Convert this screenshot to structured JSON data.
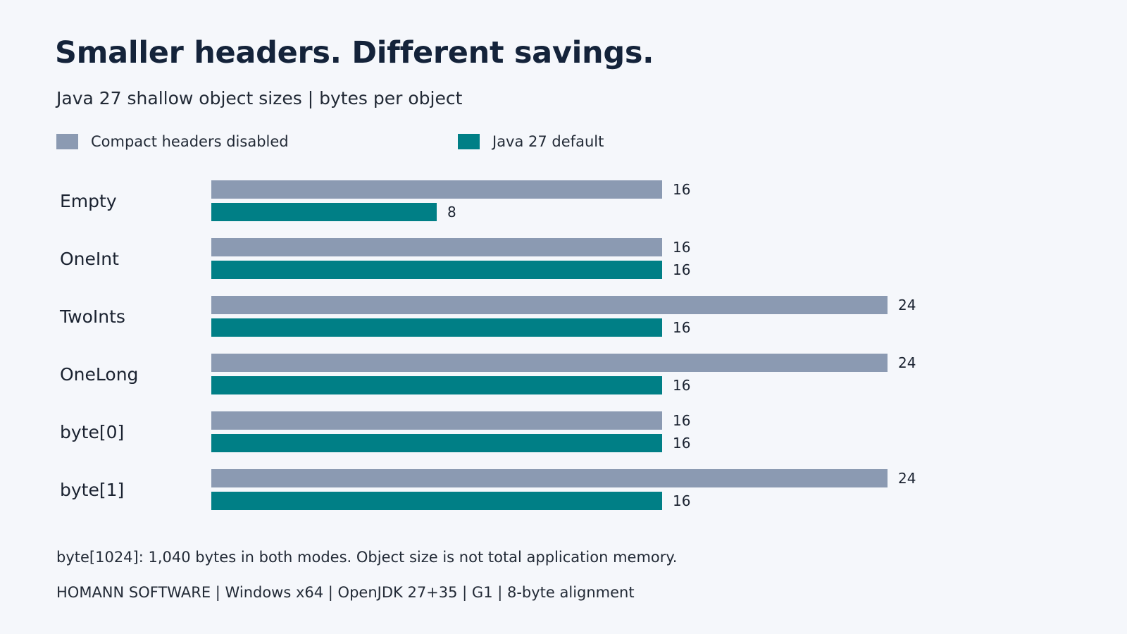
{
  "header": {
    "title": "Smaller headers. Different savings.",
    "subtitle": "Java 27 shallow object sizes | bytes per object"
  },
  "chart_data": {
    "type": "bar",
    "orientation": "horizontal",
    "title": "Smaller headers. Different savings.",
    "subtitle": "Java 27 shallow object sizes | bytes per object",
    "xlabel": "",
    "ylabel": "",
    "xlim": [
      0,
      24
    ],
    "grid": false,
    "legend_position": "top-left",
    "categories": [
      "Empty",
      "OneInt",
      "TwoInts",
      "OneLong",
      "byte[0]",
      "byte[1]"
    ],
    "series": [
      {
        "name": "Compact headers disabled",
        "color": "#8b9ab2",
        "values": [
          16,
          16,
          24,
          24,
          16,
          24
        ]
      },
      {
        "name": "Java 27 default",
        "color": "#007f86",
        "values": [
          8,
          16,
          16,
          16,
          16,
          16
        ]
      }
    ]
  },
  "footer": {
    "note": "byte[1024]: 1,040 bytes in both modes. Object size is not total application memory.",
    "credit": "HOMANN SOFTWARE | Windows x64 | OpenJDK 27+35 | G1 | 8-byte alignment"
  }
}
